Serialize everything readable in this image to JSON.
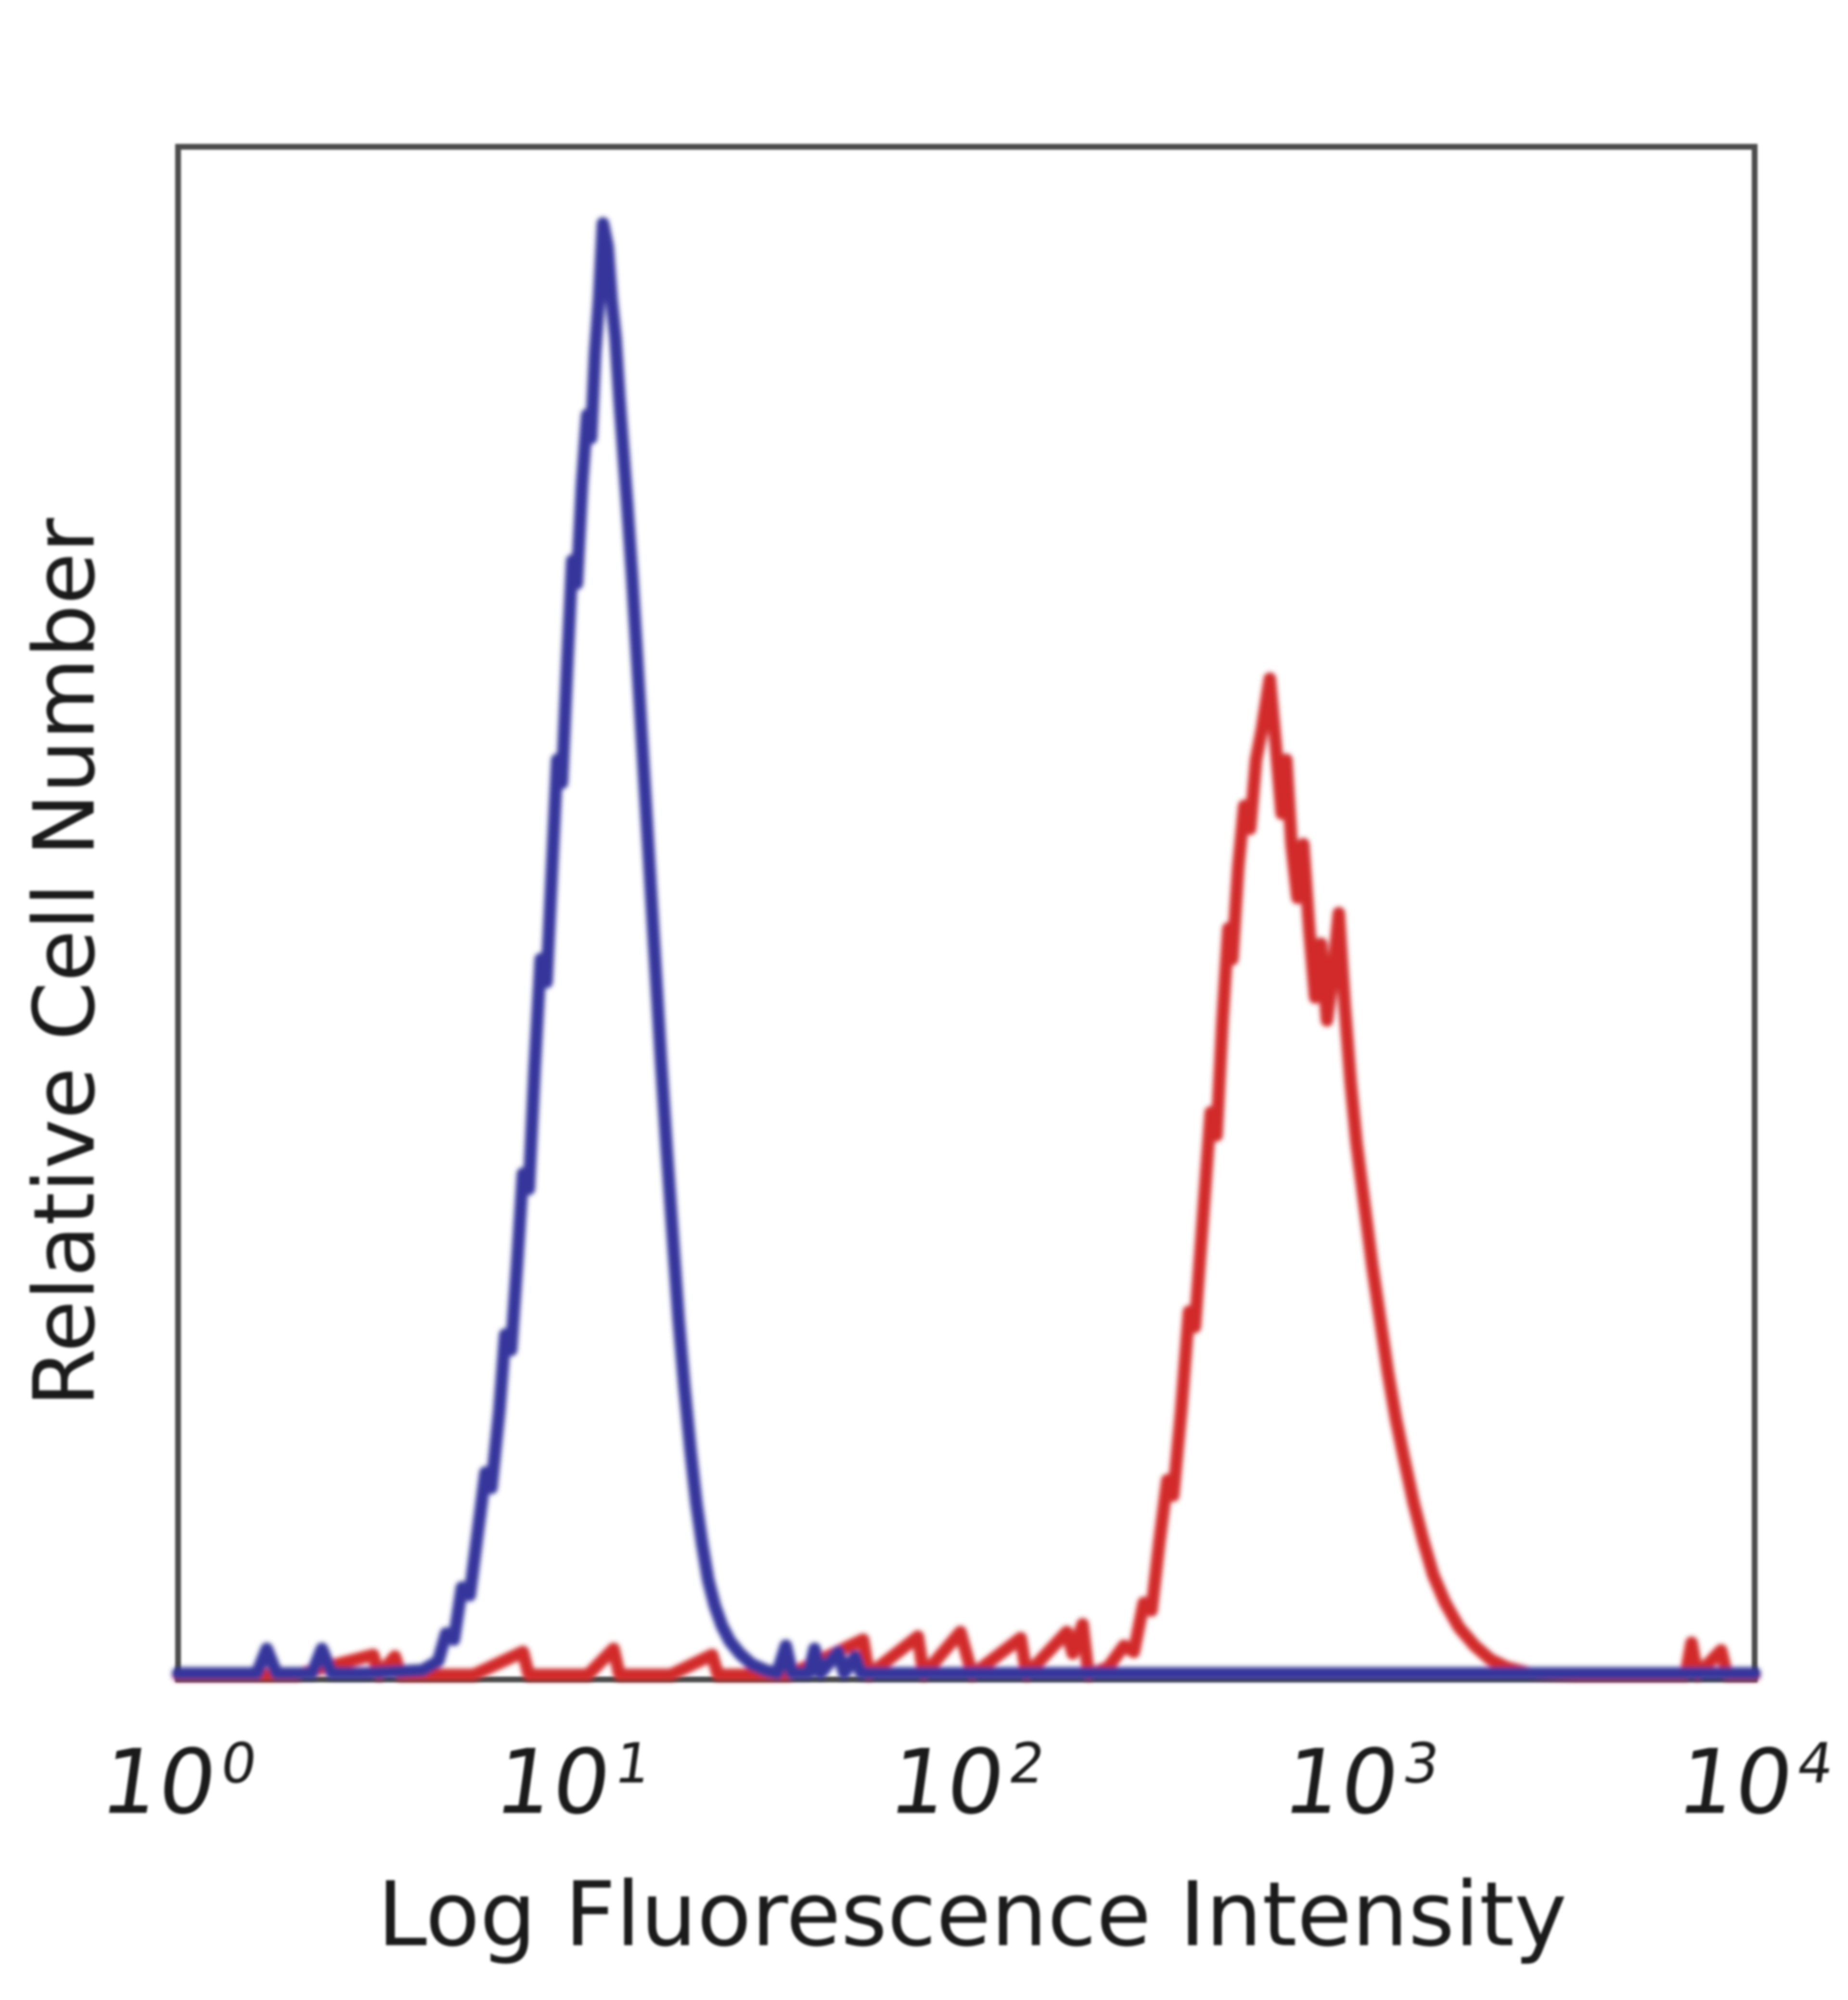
{
  "figure": {
    "background": "#ffffff",
    "frame_color": "#4c4c4c",
    "text_color": "#1b1b1b"
  },
  "chart_data": {
    "type": "line",
    "subtype": "flow-cytometry-histogram-overlay",
    "title": "",
    "xlabel": "Log Fluorescence Intensity",
    "ylabel": "Relative Cell Number",
    "x_scale": "log10",
    "xlim_log10": [
      0,
      4
    ],
    "ylim_fraction": [
      0,
      1
    ],
    "grid": false,
    "legend": "none",
    "x_ticks": [
      {
        "base": "10",
        "exp": "0",
        "log10_x": 0
      },
      {
        "base": "10",
        "exp": "1",
        "log10_x": 1
      },
      {
        "base": "10",
        "exp": "2",
        "log10_x": 2
      },
      {
        "base": "10",
        "exp": "3",
        "log10_x": 3
      },
      {
        "base": "10",
        "exp": "4",
        "log10_x": 4
      }
    ],
    "y_ticks": [],
    "series": [
      {
        "id": "blue",
        "name": "blue histogram (left / negative peak)",
        "color": "#35359b",
        "peak": {
          "log10_x": 1.08,
          "approx_x_value": 12,
          "height_fraction": 0.95
        },
        "points": [
          [
            0.0,
            0.004
          ],
          [
            0.12,
            0.004
          ],
          [
            0.2,
            0.004
          ],
          [
            0.225,
            0.02
          ],
          [
            0.25,
            0.004
          ],
          [
            0.34,
            0.004
          ],
          [
            0.365,
            0.02
          ],
          [
            0.39,
            0.004
          ],
          [
            0.47,
            0.004
          ],
          [
            0.55,
            0.005
          ],
          [
            0.62,
            0.006
          ],
          [
            0.66,
            0.012
          ],
          [
            0.68,
            0.03
          ],
          [
            0.7,
            0.026
          ],
          [
            0.72,
            0.06
          ],
          [
            0.74,
            0.055
          ],
          [
            0.76,
            0.095
          ],
          [
            0.78,
            0.135
          ],
          [
            0.795,
            0.125
          ],
          [
            0.815,
            0.175
          ],
          [
            0.83,
            0.225
          ],
          [
            0.845,
            0.215
          ],
          [
            0.86,
            0.27
          ],
          [
            0.875,
            0.33
          ],
          [
            0.89,
            0.32
          ],
          [
            0.905,
            0.4
          ],
          [
            0.92,
            0.47
          ],
          [
            0.935,
            0.455
          ],
          [
            0.95,
            0.535
          ],
          [
            0.962,
            0.6
          ],
          [
            0.974,
            0.585
          ],
          [
            0.988,
            0.665
          ],
          [
            1.0,
            0.73
          ],
          [
            1.012,
            0.715
          ],
          [
            1.025,
            0.78
          ],
          [
            1.038,
            0.825
          ],
          [
            1.048,
            0.81
          ],
          [
            1.058,
            0.865
          ],
          [
            1.068,
            0.9
          ],
          [
            1.078,
            0.95
          ],
          [
            1.09,
            0.935
          ],
          [
            1.1,
            0.9
          ],
          [
            1.11,
            0.875
          ],
          [
            1.12,
            0.835
          ],
          [
            1.13,
            0.8
          ],
          [
            1.14,
            0.765
          ],
          [
            1.152,
            0.72
          ],
          [
            1.165,
            0.665
          ],
          [
            1.18,
            0.6
          ],
          [
            1.195,
            0.535
          ],
          [
            1.21,
            0.47
          ],
          [
            1.225,
            0.405
          ],
          [
            1.24,
            0.345
          ],
          [
            1.255,
            0.29
          ],
          [
            1.27,
            0.235
          ],
          [
            1.285,
            0.19
          ],
          [
            1.3,
            0.15
          ],
          [
            1.315,
            0.115
          ],
          [
            1.33,
            0.088
          ],
          [
            1.345,
            0.065
          ],
          [
            1.362,
            0.048
          ],
          [
            1.38,
            0.035
          ],
          [
            1.4,
            0.025
          ],
          [
            1.425,
            0.017
          ],
          [
            1.455,
            0.01
          ],
          [
            1.49,
            0.006
          ],
          [
            1.52,
            0.004
          ],
          [
            1.542,
            0.022
          ],
          [
            1.558,
            0.004
          ],
          [
            1.6,
            0.004
          ],
          [
            1.615,
            0.02
          ],
          [
            1.63,
            0.004
          ],
          [
            1.675,
            0.018
          ],
          [
            1.69,
            0.004
          ],
          [
            1.718,
            0.015
          ],
          [
            1.733,
            0.004
          ],
          [
            1.82,
            0.004
          ],
          [
            2.1,
            0.004
          ],
          [
            2.6,
            0.004
          ],
          [
            3.1,
            0.004
          ],
          [
            3.6,
            0.004
          ],
          [
            4.0,
            0.004
          ]
        ]
      },
      {
        "id": "red",
        "name": "red histogram (right / stained peak)",
        "color": "#d22b2b",
        "peak": {
          "log10_x": 2.77,
          "approx_x_value": 590,
          "height_fraction": 0.65
        },
        "points": [
          [
            0.0,
            0.003
          ],
          [
            0.3,
            0.003
          ],
          [
            0.495,
            0.016
          ],
          [
            0.51,
            0.003
          ],
          [
            0.55,
            0.015
          ],
          [
            0.565,
            0.003
          ],
          [
            0.75,
            0.003
          ],
          [
            0.875,
            0.018
          ],
          [
            0.89,
            0.003
          ],
          [
            1.04,
            0.003
          ],
          [
            1.105,
            0.02
          ],
          [
            1.12,
            0.003
          ],
          [
            1.25,
            0.003
          ],
          [
            1.355,
            0.016
          ],
          [
            1.37,
            0.003
          ],
          [
            1.55,
            0.003
          ],
          [
            1.738,
            0.026
          ],
          [
            1.753,
            0.003
          ],
          [
            1.877,
            0.028
          ],
          [
            1.892,
            0.003
          ],
          [
            1.985,
            0.031
          ],
          [
            2.0,
            0.017
          ],
          [
            2.015,
            0.003
          ],
          [
            2.138,
            0.027
          ],
          [
            2.153,
            0.003
          ],
          [
            2.255,
            0.031
          ],
          [
            2.27,
            0.017
          ],
          [
            2.295,
            0.036
          ],
          [
            2.31,
            0.003
          ],
          [
            2.36,
            0.008
          ],
          [
            2.4,
            0.022
          ],
          [
            2.425,
            0.018
          ],
          [
            2.45,
            0.05
          ],
          [
            2.47,
            0.045
          ],
          [
            2.49,
            0.09
          ],
          [
            2.51,
            0.13
          ],
          [
            2.525,
            0.12
          ],
          [
            2.545,
            0.175
          ],
          [
            2.565,
            0.24
          ],
          [
            2.58,
            0.23
          ],
          [
            2.6,
            0.3
          ],
          [
            2.62,
            0.37
          ],
          [
            2.635,
            0.355
          ],
          [
            2.65,
            0.43
          ],
          [
            2.665,
            0.49
          ],
          [
            2.675,
            0.47
          ],
          [
            2.69,
            0.53
          ],
          [
            2.705,
            0.57
          ],
          [
            2.72,
            0.555
          ],
          [
            2.735,
            0.6
          ],
          [
            2.75,
            0.62
          ],
          [
            2.77,
            0.653
          ],
          [
            2.785,
            0.61
          ],
          [
            2.8,
            0.565
          ],
          [
            2.812,
            0.6
          ],
          [
            2.825,
            0.545
          ],
          [
            2.84,
            0.51
          ],
          [
            2.855,
            0.545
          ],
          [
            2.87,
            0.49
          ],
          [
            2.885,
            0.445
          ],
          [
            2.9,
            0.48
          ],
          [
            2.915,
            0.43
          ],
          [
            2.93,
            0.46
          ],
          [
            2.945,
            0.5
          ],
          [
            2.96,
            0.44
          ],
          [
            2.975,
            0.39
          ],
          [
            2.99,
            0.35
          ],
          [
            3.01,
            0.31
          ],
          [
            3.03,
            0.27
          ],
          [
            3.05,
            0.235
          ],
          [
            3.07,
            0.2
          ],
          [
            3.09,
            0.17
          ],
          [
            3.11,
            0.145
          ],
          [
            3.135,
            0.115
          ],
          [
            3.16,
            0.09
          ],
          [
            3.185,
            0.068
          ],
          [
            3.215,
            0.05
          ],
          [
            3.25,
            0.034
          ],
          [
            3.29,
            0.022
          ],
          [
            3.33,
            0.013
          ],
          [
            3.37,
            0.008
          ],
          [
            3.43,
            0.004
          ],
          [
            3.55,
            0.003
          ],
          [
            3.7,
            0.003
          ],
          [
            3.825,
            0.003
          ],
          [
            3.84,
            0.024
          ],
          [
            3.855,
            0.003
          ],
          [
            3.915,
            0.019
          ],
          [
            3.93,
            0.003
          ],
          [
            4.0,
            0.003
          ]
        ]
      }
    ]
  }
}
